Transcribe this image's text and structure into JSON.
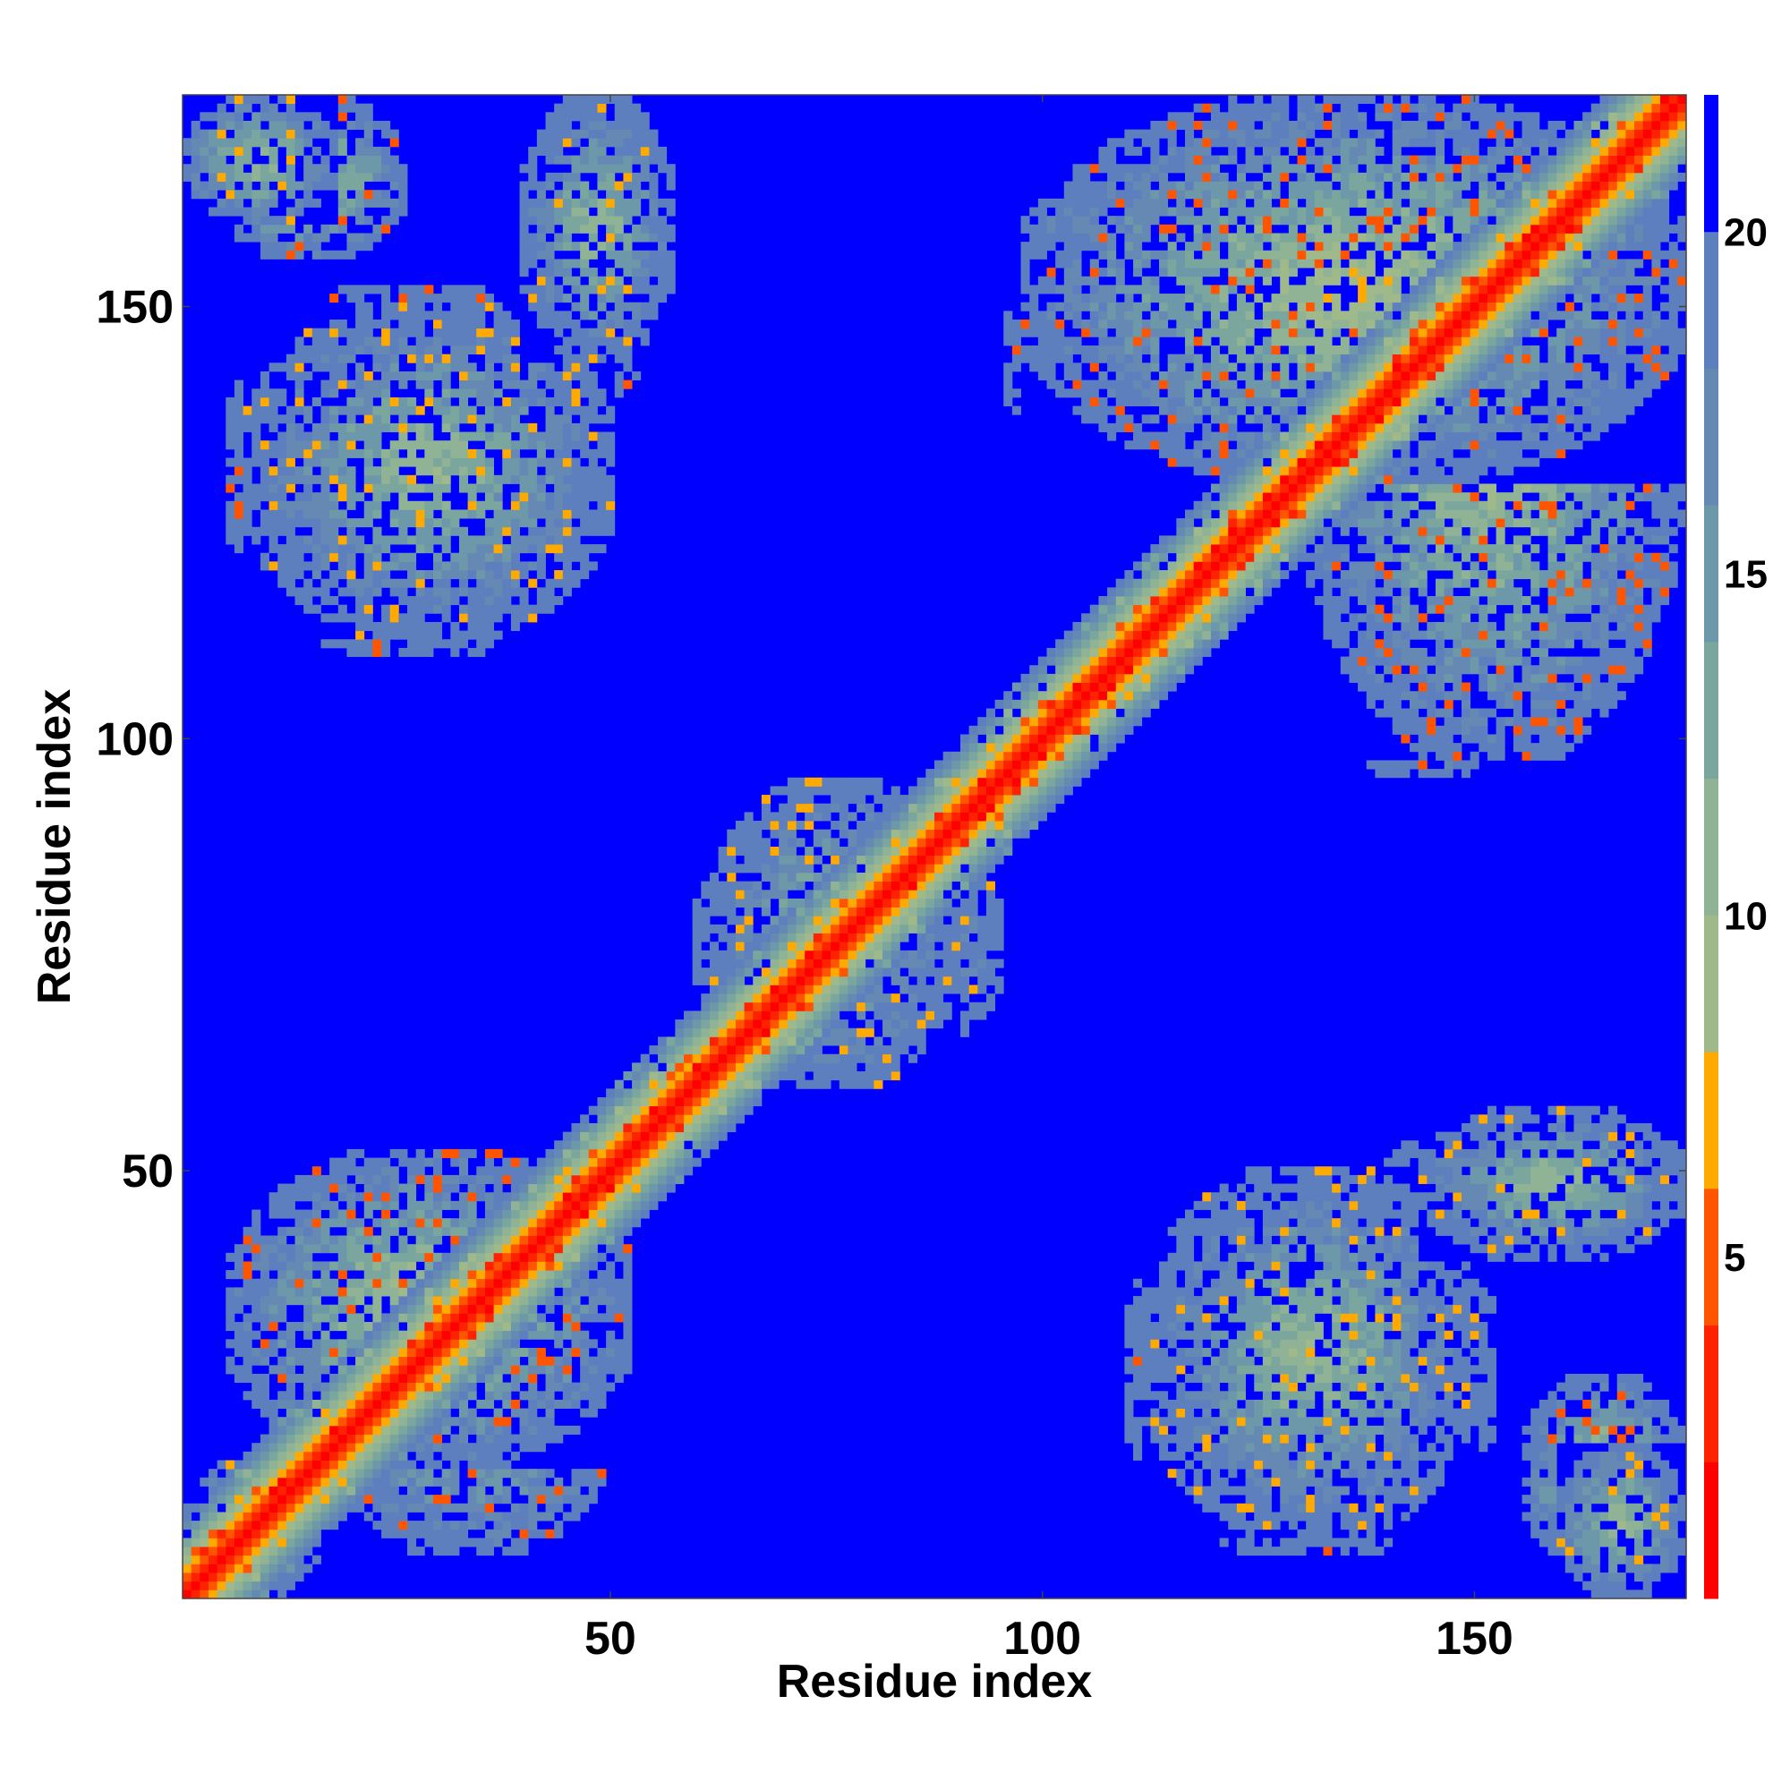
{
  "chart_data": {
    "type": "heatmap",
    "xlabel": "Residue index",
    "ylabel": "Residue index",
    "n_residues": 174,
    "xlim": [
      0.5,
      174.5
    ],
    "ylim": [
      0.5,
      174.5
    ],
    "x_ticks": [
      50,
      100,
      150
    ],
    "y_ticks": [
      50,
      100,
      150
    ],
    "x_tick_labels": [
      "50",
      "100",
      "150"
    ],
    "y_tick_labels": [
      "50",
      "100",
      "150"
    ],
    "colorbar": {
      "range": [
        0,
        22
      ],
      "ticks": [
        5,
        10,
        15,
        20
      ],
      "tick_labels": [
        "5",
        "10",
        "15",
        "20"
      ],
      "bands": [
        {
          "to": 2,
          "color": "#ff0000"
        },
        {
          "to": 4,
          "color": "#ff2200"
        },
        {
          "to": 6,
          "color": "#ff5500"
        },
        {
          "to": 8,
          "color": "#ffaa00"
        },
        {
          "to": 10,
          "color": "#9fb98a"
        },
        {
          "to": 12,
          "color": "#8fb394"
        },
        {
          "to": 14,
          "color": "#7aa69e"
        },
        {
          "to": 16,
          "color": "#6d98aa"
        },
        {
          "to": 18,
          "color": "#6689b4"
        },
        {
          "to": 20,
          "color": "#5d7fbe"
        },
        {
          "to": 22,
          "color": "#0000ff"
        }
      ]
    },
    "diagonal_band": {
      "values": [
        1,
        4,
        6,
        8,
        10,
        12,
        14,
        16,
        18,
        20
      ]
    },
    "contact_regions": [
      {
        "x": [
          1,
          16
        ],
        "y": [
          1,
          16
        ],
        "min": 8,
        "max": 19
      },
      {
        "x": [
          6,
          52
        ],
        "y": [
          16,
          52
        ],
        "min": 6,
        "max": 19
      },
      {
        "x": [
          1,
          18
        ],
        "y": [
          160,
          174
        ],
        "min": 8,
        "max": 19
      },
      {
        "x": [
          40,
          57
        ],
        "y": [
          144,
          174
        ],
        "min": 8,
        "max": 20
      },
      {
        "x": [
          8,
          50
        ],
        "y": [
          112,
          150
        ],
        "min": 8,
        "max": 20
      },
      {
        "x": [
          62,
          90
        ],
        "y": [
          60,
          95
        ],
        "min": 9,
        "max": 20
      },
      {
        "x": [
          98,
          174
        ],
        "y": [
          130,
          174
        ],
        "min": 6,
        "max": 19
      },
      {
        "x": [
          130,
          158
        ],
        "y": [
          96,
          140
        ],
        "min": 7,
        "max": 19
      },
      {
        "x": [
          110,
          152
        ],
        "y": [
          6,
          48
        ],
        "min": 6,
        "max": 20
      },
      {
        "x": [
          140,
          174
        ],
        "y": [
          40,
          56
        ],
        "min": 6,
        "max": 20
      },
      {
        "x": [
          156,
          174
        ],
        "y": [
          4,
          26
        ],
        "min": 6,
        "max": 19
      }
    ]
  }
}
